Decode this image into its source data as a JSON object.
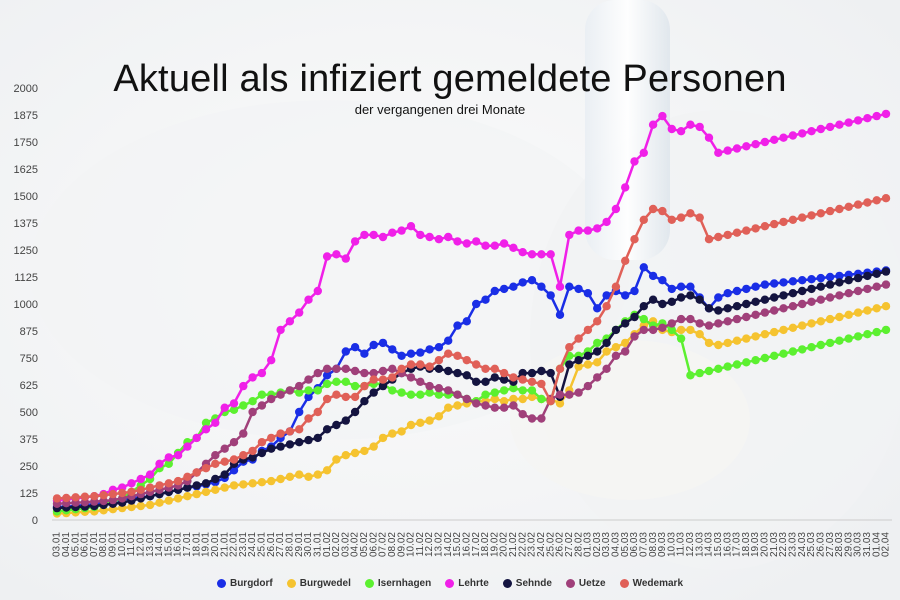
{
  "chart_data": {
    "type": "line",
    "title": "Aktuell als infiziert gemeldete Personen",
    "subtitle": "der vergangenen drei Monate",
    "xlabel": "",
    "ylabel": "",
    "ylim": [
      0,
      2000
    ],
    "yticks": [
      "0",
      "125",
      "250",
      "375",
      "500",
      "625",
      "750",
      "875",
      "1000",
      "1125",
      "1250",
      "1375",
      "1500",
      "1625",
      "1750",
      "1875",
      "2000"
    ],
    "grid": false,
    "legend_position": "bottom-center",
    "categories": [
      "03.01",
      "04.01",
      "05.01",
      "06.01",
      "07.01",
      "08.01",
      "09.01",
      "10.01",
      "11.01",
      "12.01",
      "13.01",
      "14.01",
      "15.01",
      "16.01",
      "17.01",
      "18.01",
      "19.01",
      "20.01",
      "21.01",
      "22.01",
      "23.01",
      "24.01",
      "25.01",
      "26.01",
      "27.01",
      "28.01",
      "29.01",
      "30.01",
      "31.01",
      "01.02",
      "02.02",
      "03.02",
      "04.02",
      "05.02",
      "06.02",
      "07.02",
      "08.02",
      "09.02",
      "10.02",
      "11.02",
      "12.02",
      "13.02",
      "14.02",
      "15.02",
      "16.02",
      "17.02",
      "18.02",
      "19.02",
      "20.02",
      "21.02",
      "22.02",
      "23.02",
      "24.02",
      "25.02",
      "26.02",
      "27.02",
      "28.02",
      "01.03",
      "02.03",
      "03.03",
      "04.03",
      "05.03",
      "06.03",
      "07.03",
      "08.03",
      "09.03",
      "10.03",
      "11.03",
      "12.03",
      "13.03",
      "14.03",
      "15.03",
      "16.03",
      "17.03",
      "18.03",
      "19.03",
      "20.03",
      "21.03",
      "22.03",
      "23.03",
      "24.03",
      "25.03",
      "26.03",
      "27.03",
      "28.03",
      "29.03",
      "30.03",
      "31.03",
      "01.04",
      "02.04"
    ],
    "xtick_labels": [
      "03.01",
      "04.01",
      "05.01",
      "06.01",
      "07.01",
      "08.01",
      "09.01",
      "10.01",
      "11.01",
      "12.01",
      "13.01",
      "14.01",
      "15.01",
      "16.01",
      "17.01",
      "18.01",
      "19.01",
      "20.01",
      "21.01",
      "22.01",
      "23.01",
      "24.01",
      "25.01",
      "26.01",
      "27.01",
      "28.01",
      "29.01",
      "30.01",
      "31.01",
      "01.02",
      "02.02",
      "03.02",
      "04.02",
      "05.02",
      "06.02",
      "07.02",
      "08.02",
      "09.02",
      "10.02",
      "11.02",
      "12.02",
      "13.02",
      "14.02",
      "15.02",
      "16.02",
      "17.02",
      "18.02",
      "19.02",
      "20.02",
      "21.02",
      "22.02",
      "23.02",
      "24.02",
      "25.02",
      "26.02",
      "27.02",
      "28.02",
      "01.03",
      "02.03",
      "03.03",
      "04.03",
      "05.03",
      "06.03",
      "07.03",
      "08.03",
      "09.03",
      "10.03",
      "11.03",
      "12.03",
      "13.03",
      "14.03",
      "15.03",
      "16.03",
      "17.03",
      "18.03",
      "19.03",
      "20.03",
      "21.03",
      "22.03",
      "23.03",
      "24.03",
      "25.03",
      "26.03",
      "27.03",
      "28.03",
      "29.03",
      "30.03",
      "31.03",
      "01.04",
      "02.04"
    ],
    "series": [
      {
        "name": "Burgdorf",
        "color": "#1a2ee6",
        "values": [
          60,
          62,
          65,
          70,
          72,
          78,
          85,
          95,
          100,
          105,
          110,
          120,
          130,
          140,
          150,
          155,
          165,
          175,
          195,
          230,
          270,
          280,
          320,
          340,
          380,
          410,
          500,
          570,
          610,
          670,
          700,
          780,
          800,
          770,
          810,
          820,
          790,
          760,
          770,
          775,
          790,
          800,
          830,
          900,
          920,
          1000,
          1020,
          1060,
          1070,
          1080,
          1100,
          1110,
          1080,
          1040,
          950,
          1080,
          1070,
          1050,
          980,
          1040,
          1060,
          1040,
          1060,
          1170,
          1130,
          1110,
          1070,
          1080,
          1080,
          1030,
          980,
          1030,
          1050,
          1060,
          1070,
          1080,
          1090,
          1095,
          1100,
          1105,
          1110,
          1115,
          1120,
          1125,
          1130,
          1135,
          1140,
          1145,
          1150,
          1155
        ]
      },
      {
        "name": "Burgwedel",
        "color": "#f5c330",
        "values": [
          30,
          32,
          35,
          38,
          40,
          45,
          50,
          55,
          60,
          65,
          70,
          80,
          90,
          100,
          110,
          120,
          130,
          140,
          150,
          160,
          165,
          170,
          175,
          180,
          190,
          200,
          210,
          200,
          210,
          230,
          280,
          300,
          310,
          320,
          340,
          380,
          400,
          410,
          440,
          450,
          460,
          480,
          520,
          530,
          540,
          550,
          550,
          560,
          550,
          560,
          560,
          570,
          560,
          560,
          540,
          600,
          710,
          720,
          730,
          780,
          800,
          820,
          860,
          900,
          920,
          880,
          870,
          880,
          880,
          860,
          820,
          810,
          820,
          830,
          840,
          850,
          860,
          870,
          880,
          890,
          900,
          910,
          920,
          930,
          940,
          950,
          960,
          970,
          980,
          990
        ]
      },
      {
        "name": "Isernhagen",
        "color": "#5cf030",
        "values": [
          40,
          45,
          50,
          55,
          60,
          70,
          85,
          100,
          130,
          160,
          190,
          240,
          260,
          310,
          360,
          380,
          450,
          470,
          500,
          510,
          530,
          550,
          580,
          580,
          590,
          600,
          590,
          600,
          600,
          630,
          640,
          640,
          620,
          620,
          630,
          630,
          600,
          590,
          580,
          580,
          590,
          580,
          580,
          580,
          560,
          550,
          580,
          590,
          600,
          610,
          600,
          600,
          560,
          550,
          700,
          760,
          760,
          780,
          820,
          840,
          880,
          920,
          950,
          930,
          900,
          910,
          880,
          840,
          670,
          680,
          690,
          700,
          710,
          720,
          730,
          740,
          750,
          760,
          770,
          780,
          790,
          800,
          810,
          820,
          830,
          840,
          850,
          860,
          870,
          880
        ]
      },
      {
        "name": "Lehrte",
        "color": "#f020e8",
        "values": [
          90,
          95,
          100,
          105,
          110,
          120,
          140,
          150,
          170,
          190,
          210,
          260,
          290,
          300,
          340,
          380,
          420,
          450,
          520,
          540,
          620,
          660,
          680,
          740,
          880,
          920,
          960,
          1020,
          1060,
          1220,
          1230,
          1210,
          1290,
          1320,
          1320,
          1310,
          1330,
          1340,
          1360,
          1320,
          1310,
          1300,
          1310,
          1290,
          1280,
          1290,
          1270,
          1270,
          1280,
          1260,
          1240,
          1230,
          1230,
          1230,
          1080,
          1320,
          1340,
          1340,
          1350,
          1380,
          1440,
          1540,
          1660,
          1700,
          1830,
          1870,
          1810,
          1800,
          1830,
          1820,
          1770,
          1700,
          1710,
          1720,
          1730,
          1740,
          1750,
          1760,
          1770,
          1780,
          1790,
          1800,
          1810,
          1820,
          1830,
          1840,
          1850,
          1860,
          1870,
          1880
        ]
      },
      {
        "name": "Sehnde",
        "color": "#141440",
        "values": [
          55,
          58,
          60,
          62,
          65,
          70,
          75,
          80,
          90,
          100,
          110,
          120,
          130,
          140,
          150,
          160,
          170,
          190,
          210,
          260,
          280,
          290,
          310,
          330,
          340,
          350,
          360,
          370,
          380,
          420,
          440,
          460,
          500,
          550,
          590,
          620,
          650,
          680,
          700,
          710,
          700,
          700,
          690,
          680,
          670,
          640,
          640,
          660,
          650,
          640,
          680,
          680,
          690,
          680,
          570,
          720,
          740,
          760,
          780,
          820,
          880,
          910,
          940,
          990,
          1020,
          1000,
          1010,
          1030,
          1040,
          1020,
          980,
          970,
          980,
          990,
          1000,
          1010,
          1020,
          1030,
          1040,
          1050,
          1060,
          1070,
          1080,
          1090,
          1100,
          1110,
          1120,
          1130,
          1140,
          1150
        ]
      },
      {
        "name": "Uetze",
        "color": "#a0407a",
        "values": [
          75,
          78,
          80,
          82,
          85,
          88,
          92,
          100,
          110,
          120,
          130,
          140,
          150,
          160,
          180,
          220,
          260,
          300,
          330,
          360,
          400,
          500,
          530,
          560,
          580,
          600,
          620,
          650,
          680,
          700,
          700,
          700,
          690,
          680,
          680,
          690,
          700,
          680,
          660,
          640,
          620,
          610,
          600,
          580,
          560,
          540,
          530,
          520,
          520,
          530,
          490,
          470,
          470,
          560,
          580,
          580,
          590,
          620,
          660,
          700,
          760,
          780,
          850,
          880,
          880,
          890,
          910,
          930,
          930,
          910,
          900,
          910,
          920,
          930,
          940,
          950,
          960,
          970,
          980,
          990,
          1000,
          1010,
          1020,
          1030,
          1040,
          1050,
          1060,
          1070,
          1080,
          1090
        ]
      },
      {
        "name": "Wedemark",
        "color": "#e06058",
        "values": [
          100,
          102,
          105,
          108,
          110,
          115,
          120,
          125,
          130,
          140,
          150,
          160,
          170,
          180,
          200,
          220,
          240,
          260,
          270,
          280,
          300,
          320,
          360,
          380,
          400,
          410,
          420,
          470,
          500,
          560,
          580,
          570,
          570,
          620,
          650,
          650,
          660,
          700,
          720,
          720,
          710,
          740,
          770,
          760,
          740,
          720,
          700,
          700,
          680,
          660,
          650,
          640,
          630,
          550,
          700,
          800,
          840,
          880,
          920,
          990,
          1080,
          1200,
          1300,
          1390,
          1440,
          1430,
          1390,
          1400,
          1420,
          1400,
          1300,
          1310,
          1320,
          1330,
          1340,
          1350,
          1360,
          1370,
          1380,
          1390,
          1400,
          1410,
          1420,
          1430,
          1440,
          1450,
          1460,
          1470,
          1480,
          1490
        ]
      }
    ]
  }
}
